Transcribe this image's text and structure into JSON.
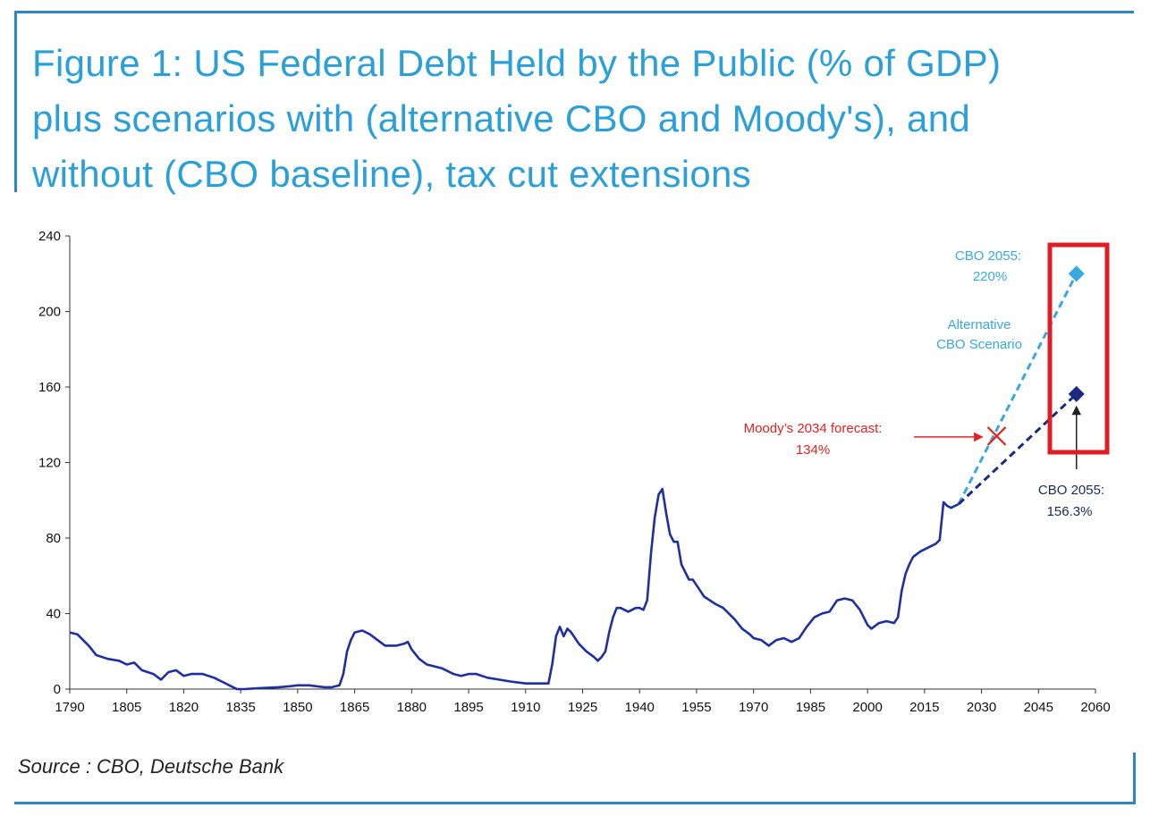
{
  "title_lines": [
    "Figure 1: US Federal Debt Held by the Public (% of GDP)",
    "plus scenarios with (alternative CBO and Moody's), and",
    "without (CBO baseline), tax cut extensions"
  ],
  "source": "Source : CBO, Deutsche Bank",
  "colors": {
    "frame": "#2a86c7",
    "title": "#2a9fd8",
    "historical": "#1f2f9f",
    "alternative": "#3aa8e0",
    "baseline": "#1a2a80",
    "moodys": "#e52222",
    "highlight_box": "#e01c24"
  },
  "chart_data": {
    "type": "line",
    "xlim": [
      1790,
      2060
    ],
    "ylim": [
      0,
      240
    ],
    "x_ticks": [
      "1790",
      "1805",
      "1820",
      "1835",
      "1850",
      "1865",
      "1880",
      "1895",
      "1910",
      "1925",
      "1940",
      "1955",
      "1970",
      "1985",
      "2000",
      "2015",
      "2030",
      "2045",
      "2060"
    ],
    "y_ticks": [
      "0",
      "40",
      "80",
      "120",
      "160",
      "200",
      "240"
    ],
    "grid": false,
    "series": [
      {
        "style": "solid",
        "points": [
          [
            1790,
            30
          ],
          [
            1792,
            29
          ],
          [
            1795,
            23
          ],
          [
            1797,
            18
          ],
          [
            1800,
            16
          ],
          [
            1803,
            15
          ],
          [
            1805,
            13
          ],
          [
            1807,
            14
          ],
          [
            1809,
            10
          ],
          [
            1812,
            8
          ],
          [
            1814,
            5
          ],
          [
            1816,
            9
          ],
          [
            1818,
            10
          ],
          [
            1820,
            7
          ],
          [
            1822,
            8
          ],
          [
            1825,
            8
          ],
          [
            1828,
            6
          ],
          [
            1830,
            4
          ],
          [
            1832,
            2
          ],
          [
            1834,
            0
          ],
          [
            1836,
            0
          ],
          [
            1840,
            0.5
          ],
          [
            1845,
            1
          ],
          [
            1848,
            1.5
          ],
          [
            1850,
            2
          ],
          [
            1853,
            2
          ],
          [
            1857,
            1
          ],
          [
            1859,
            1
          ],
          [
            1861,
            2
          ],
          [
            1862,
            8
          ],
          [
            1863,
            20
          ],
          [
            1864,
            26
          ],
          [
            1865,
            30
          ],
          [
            1867,
            31
          ],
          [
            1869,
            29
          ],
          [
            1871,
            26
          ],
          [
            1873,
            23
          ],
          [
            1876,
            23
          ],
          [
            1878,
            24
          ],
          [
            1879,
            25
          ],
          [
            1880,
            21
          ],
          [
            1882,
            16
          ],
          [
            1884,
            13
          ],
          [
            1888,
            11
          ],
          [
            1891,
            8
          ],
          [
            1893,
            7
          ],
          [
            1895,
            8
          ],
          [
            1897,
            8
          ],
          [
            1900,
            6
          ],
          [
            1903,
            5
          ],
          [
            1906,
            4
          ],
          [
            1910,
            3
          ],
          [
            1914,
            3
          ],
          [
            1916,
            3
          ],
          [
            1917,
            13
          ],
          [
            1918,
            28
          ],
          [
            1919,
            33
          ],
          [
            1920,
            28
          ],
          [
            1921,
            32
          ],
          [
            1922,
            30
          ],
          [
            1924,
            24
          ],
          [
            1926,
            20
          ],
          [
            1928,
            17
          ],
          [
            1929,
            15
          ],
          [
            1930,
            17
          ],
          [
            1931,
            20
          ],
          [
            1932,
            30
          ],
          [
            1933,
            38
          ],
          [
            1934,
            43
          ],
          [
            1935,
            43
          ],
          [
            1936,
            42
          ],
          [
            1937,
            41
          ],
          [
            1938,
            42
          ],
          [
            1939,
            43
          ],
          [
            1940,
            43
          ],
          [
            1941,
            42
          ],
          [
            1942,
            47
          ],
          [
            1943,
            72
          ],
          [
            1944,
            91
          ],
          [
            1945,
            103
          ],
          [
            1946,
            106
          ],
          [
            1947,
            93
          ],
          [
            1948,
            82
          ],
          [
            1949,
            78
          ],
          [
            1950,
            78
          ],
          [
            1951,
            66
          ],
          [
            1952,
            62
          ],
          [
            1953,
            58
          ],
          [
            1954,
            58
          ],
          [
            1955,
            55
          ],
          [
            1957,
            49
          ],
          [
            1960,
            45
          ],
          [
            1962,
            43
          ],
          [
            1965,
            37
          ],
          [
            1967,
            32
          ],
          [
            1969,
            29
          ],
          [
            1970,
            27
          ],
          [
            1972,
            26
          ],
          [
            1974,
            23
          ],
          [
            1976,
            26
          ],
          [
            1978,
            27
          ],
          [
            1980,
            25
          ],
          [
            1982,
            27
          ],
          [
            1984,
            33
          ],
          [
            1986,
            38
          ],
          [
            1988,
            40
          ],
          [
            1990,
            41
          ],
          [
            1992,
            47
          ],
          [
            1994,
            48
          ],
          [
            1996,
            47
          ],
          [
            1998,
            42
          ],
          [
            2000,
            34
          ],
          [
            2001,
            32
          ],
          [
            2003,
            35
          ],
          [
            2005,
            36
          ],
          [
            2007,
            35
          ],
          [
            2008,
            38
          ],
          [
            2009,
            52
          ],
          [
            2010,
            61
          ],
          [
            2011,
            66
          ],
          [
            2012,
            70
          ],
          [
            2014,
            73
          ],
          [
            2016,
            75
          ],
          [
            2018,
            77
          ],
          [
            2019,
            79
          ],
          [
            2020,
            99
          ],
          [
            2021,
            97
          ],
          [
            2022,
            96
          ],
          [
            2023,
            97
          ],
          [
            2024,
            98
          ]
        ]
      },
      {
        "name": "Alternative CBO Scenario",
        "style": "dashed",
        "points": [
          [
            2024,
            98
          ],
          [
            2055,
            220
          ]
        ],
        "marker": "diamond"
      },
      {
        "style": "dashed",
        "points": [
          [
            2024,
            98
          ],
          [
            2055,
            156.3
          ]
        ],
        "marker": "diamond"
      }
    ],
    "markers": [
      {
        "x": 2034,
        "y": 134,
        "shape": "x"
      }
    ],
    "annotations": {
      "cbo_alt_line1": "CBO 2055:",
      "cbo_alt_line2": "220%",
      "alt_label_line1": "Alternative",
      "alt_label_line2": "CBO Scenario",
      "moodys_line1": "Moody’s 2034 forecast:",
      "moodys_line2": "134%",
      "cbo_base_line1": "CBO 2055:",
      "cbo_base_line2": "156.3%"
    }
  }
}
